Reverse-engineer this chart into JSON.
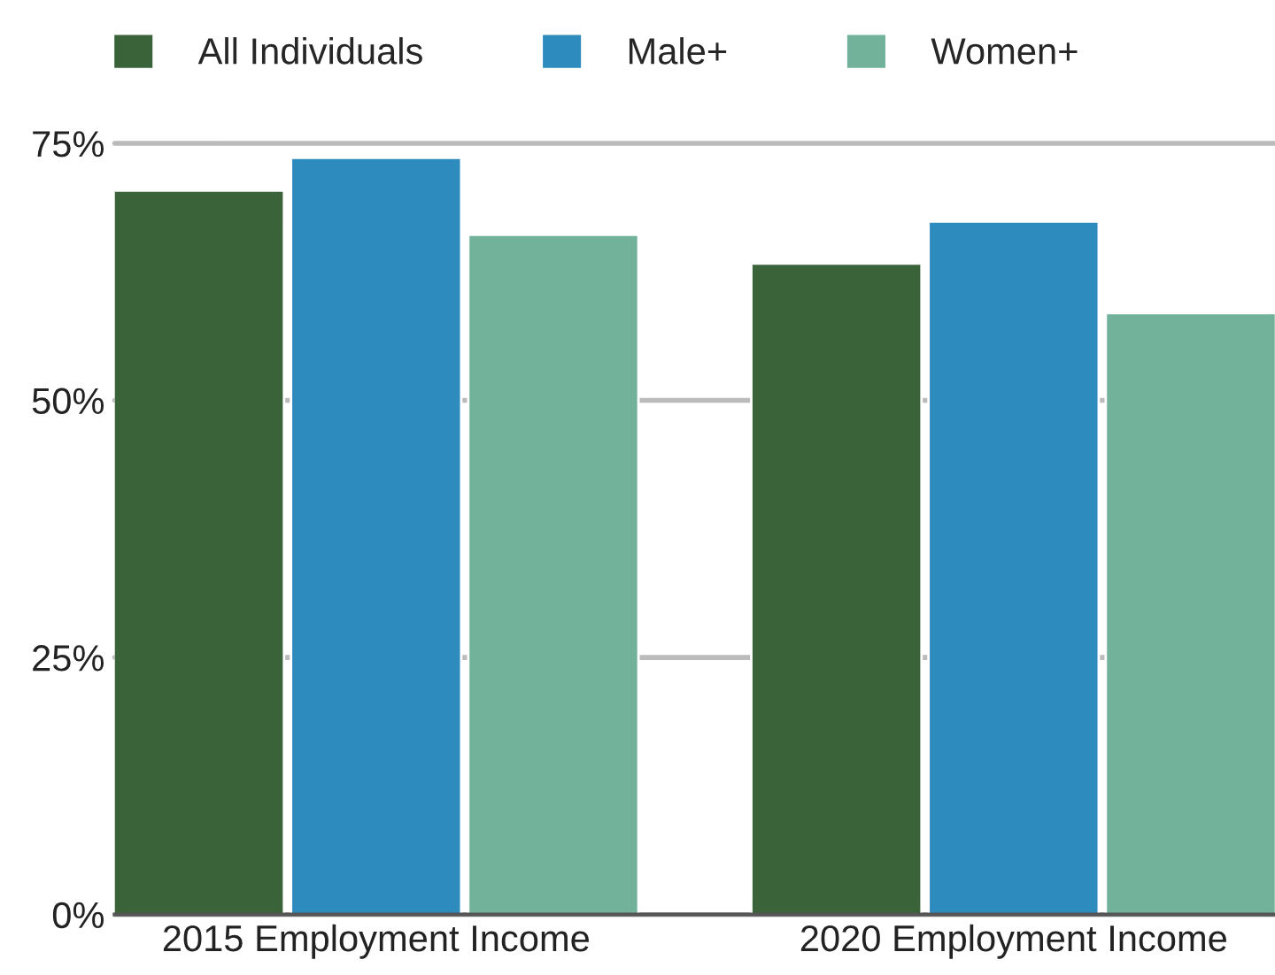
{
  "chart_data": {
    "type": "bar",
    "categories": [
      "2015 Employment Income",
      "2020 Employment Income"
    ],
    "series": [
      {
        "name": "All Individuals",
        "color": "#3a633a",
        "values": [
          70.4,
          63.3
        ]
      },
      {
        "name": "Male+",
        "color": "#2e8bbd",
        "values": [
          73.6,
          67.4
        ]
      },
      {
        "name": "Women+",
        "color": "#72b19a",
        "values": [
          66.1,
          58.5
        ]
      }
    ],
    "ylim": [
      0,
      75
    ],
    "yticks": [
      {
        "value": 0,
        "label": "0%"
      },
      {
        "value": 25,
        "label": "25%"
      },
      {
        "value": 50,
        "label": "50%"
      },
      {
        "value": 75,
        "label": "75%"
      }
    ],
    "grid": "y",
    "legend": "top"
  }
}
